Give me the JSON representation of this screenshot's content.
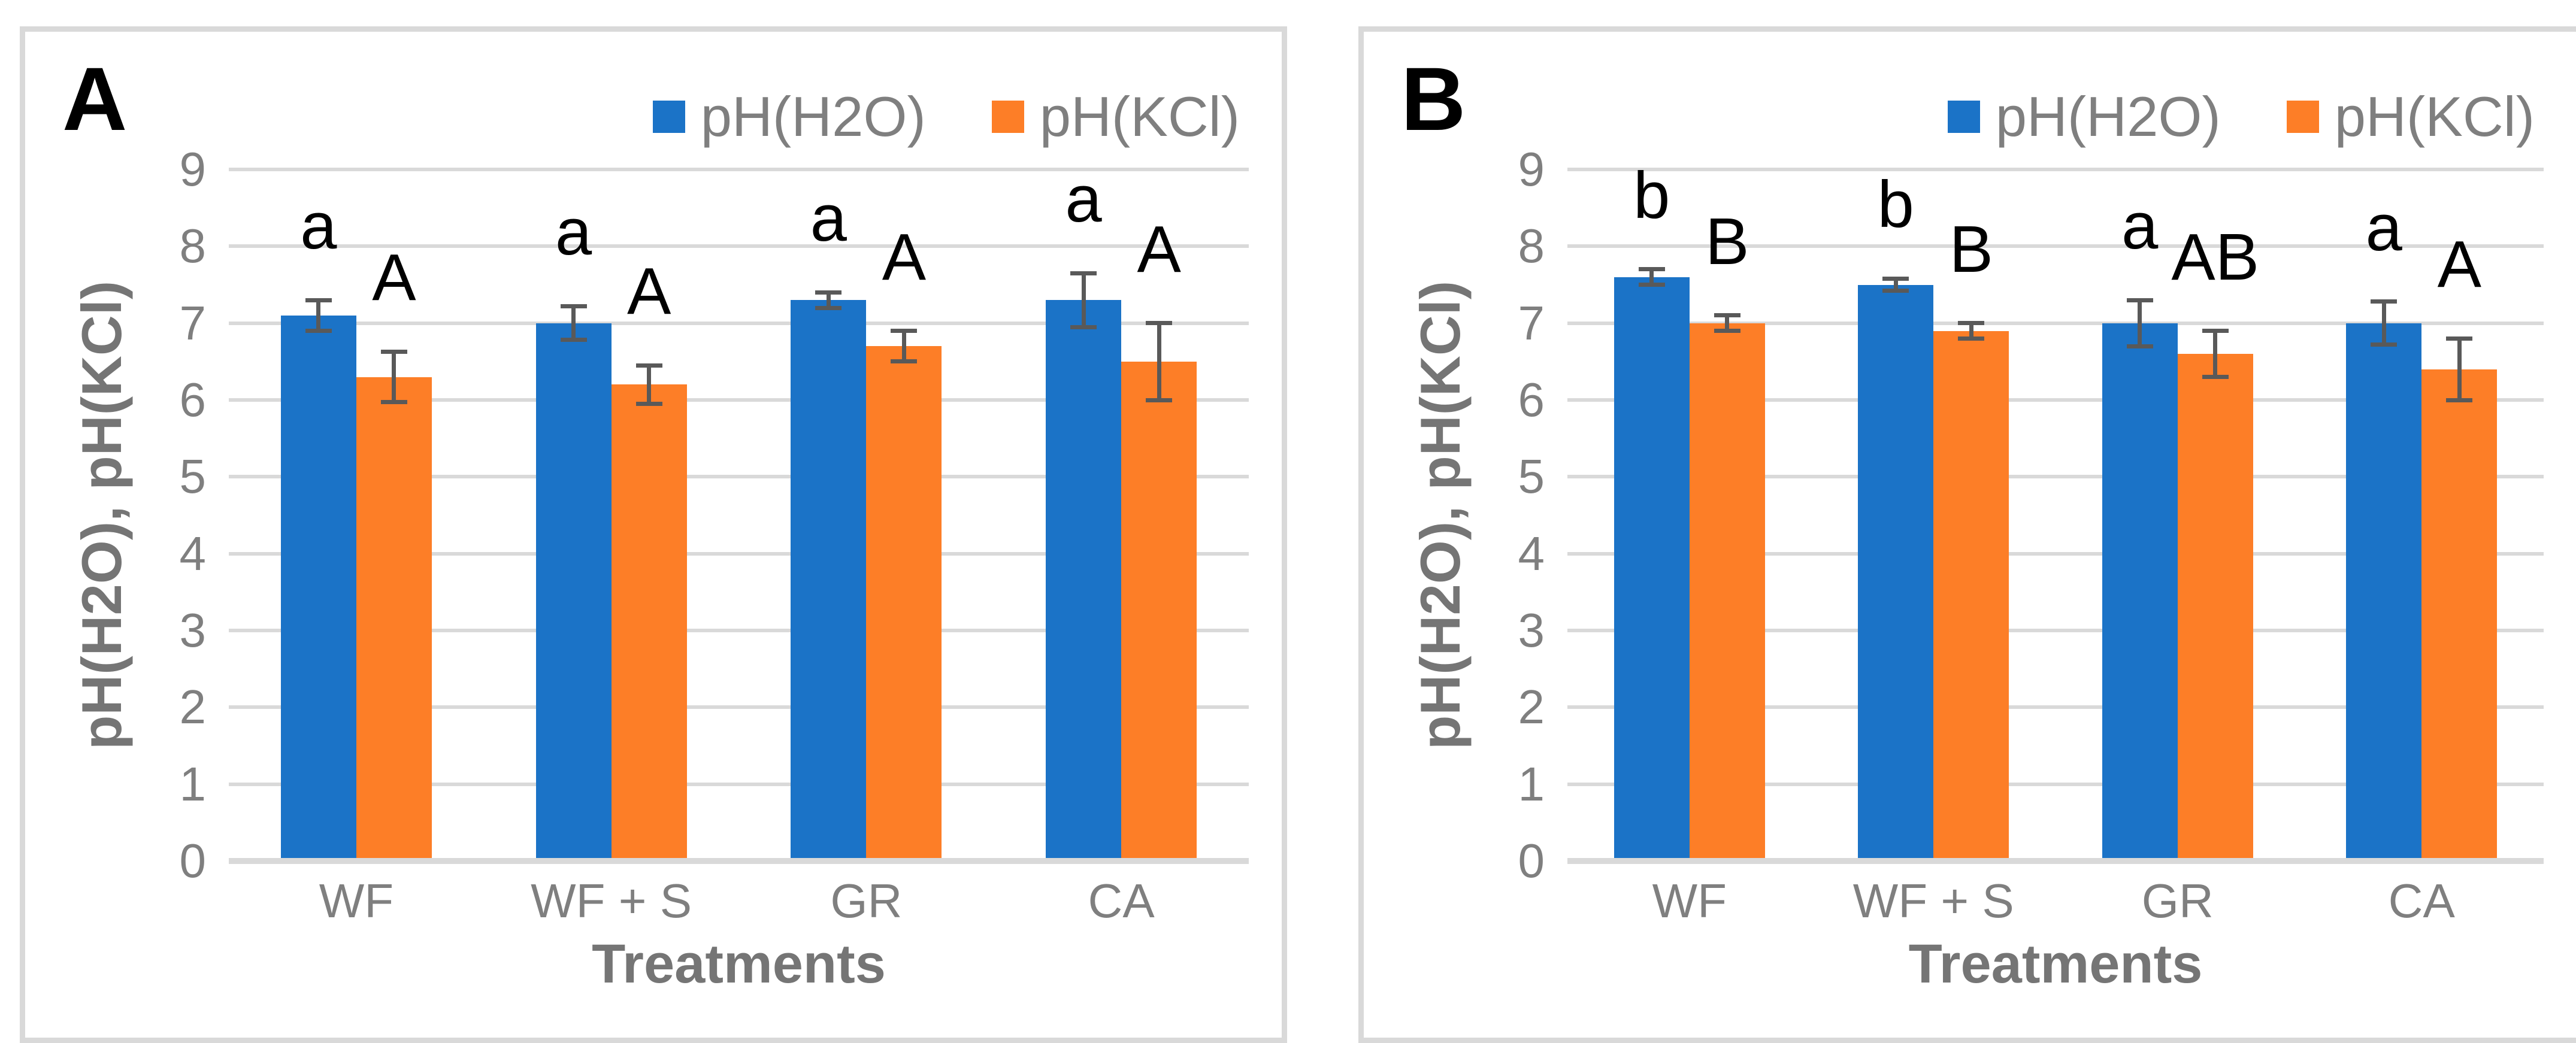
{
  "figure": {
    "background": "#ffffff",
    "panel_count": 2
  },
  "colors": {
    "gridline": "#d9d9d9",
    "axis_line": "#d9d9d9",
    "panel_border": "#d9d9d9",
    "tick_label": "#7f7f7f",
    "axis_title": "#757575",
    "legend_text": "#7f7f7f",
    "error_bar": "#595959",
    "sig_letter": "#000000",
    "panel_label": "#000000",
    "series_h2o": "#1b73c7",
    "series_kcl": "#fd7e27"
  },
  "chart_data": [
    {
      "panel_label": "A",
      "type": "bar",
      "title": "",
      "xlabel": "Treatments",
      "ylabel": "pH(H2O), pH(KCl)",
      "categories": [
        "WF",
        "WF + S",
        "GR",
        "CA"
      ],
      "ylim": [
        0,
        9
      ],
      "yticks": [
        0,
        1,
        2,
        3,
        4,
        5,
        6,
        7,
        8,
        9
      ],
      "grid": true,
      "legend_position": "top-right",
      "series": [
        {
          "name": "pH(H2O)",
          "color": "#1b73c7",
          "values": [
            7.1,
            7.0,
            7.3,
            7.3
          ],
          "errors": [
            0.2,
            0.22,
            0.1,
            0.35
          ],
          "sig_letters": [
            "a",
            "a",
            "a",
            "a"
          ]
        },
        {
          "name": "pH(KCl)",
          "color": "#fd7e27",
          "values": [
            6.3,
            6.2,
            6.7,
            6.5
          ],
          "errors": [
            0.33,
            0.25,
            0.2,
            0.5
          ],
          "sig_letters": [
            "A",
            "A",
            "A",
            "A"
          ]
        }
      ]
    },
    {
      "panel_label": "B",
      "type": "bar",
      "title": "",
      "xlabel": "Treatments",
      "ylabel": "pH(H2O), pH(KCl)",
      "categories": [
        "WF",
        "WF + S",
        "GR",
        "CA"
      ],
      "ylim": [
        0,
        9
      ],
      "yticks": [
        0,
        1,
        2,
        3,
        4,
        5,
        6,
        7,
        8,
        9
      ],
      "grid": true,
      "legend_position": "top-right",
      "series": [
        {
          "name": "pH(H2O)",
          "color": "#1b73c7",
          "values": [
            7.6,
            7.5,
            7.0,
            7.0
          ],
          "errors": [
            0.1,
            0.08,
            0.3,
            0.28
          ],
          "sig_letters": [
            "b",
            "b",
            "a",
            "a"
          ]
        },
        {
          "name": "pH(KCl)",
          "color": "#fd7e27",
          "values": [
            7.0,
            6.9,
            6.6,
            6.4
          ],
          "errors": [
            0.1,
            0.1,
            0.3,
            0.4
          ],
          "sig_letters": [
            "B",
            "B",
            "AB",
            "A"
          ]
        }
      ]
    }
  ]
}
